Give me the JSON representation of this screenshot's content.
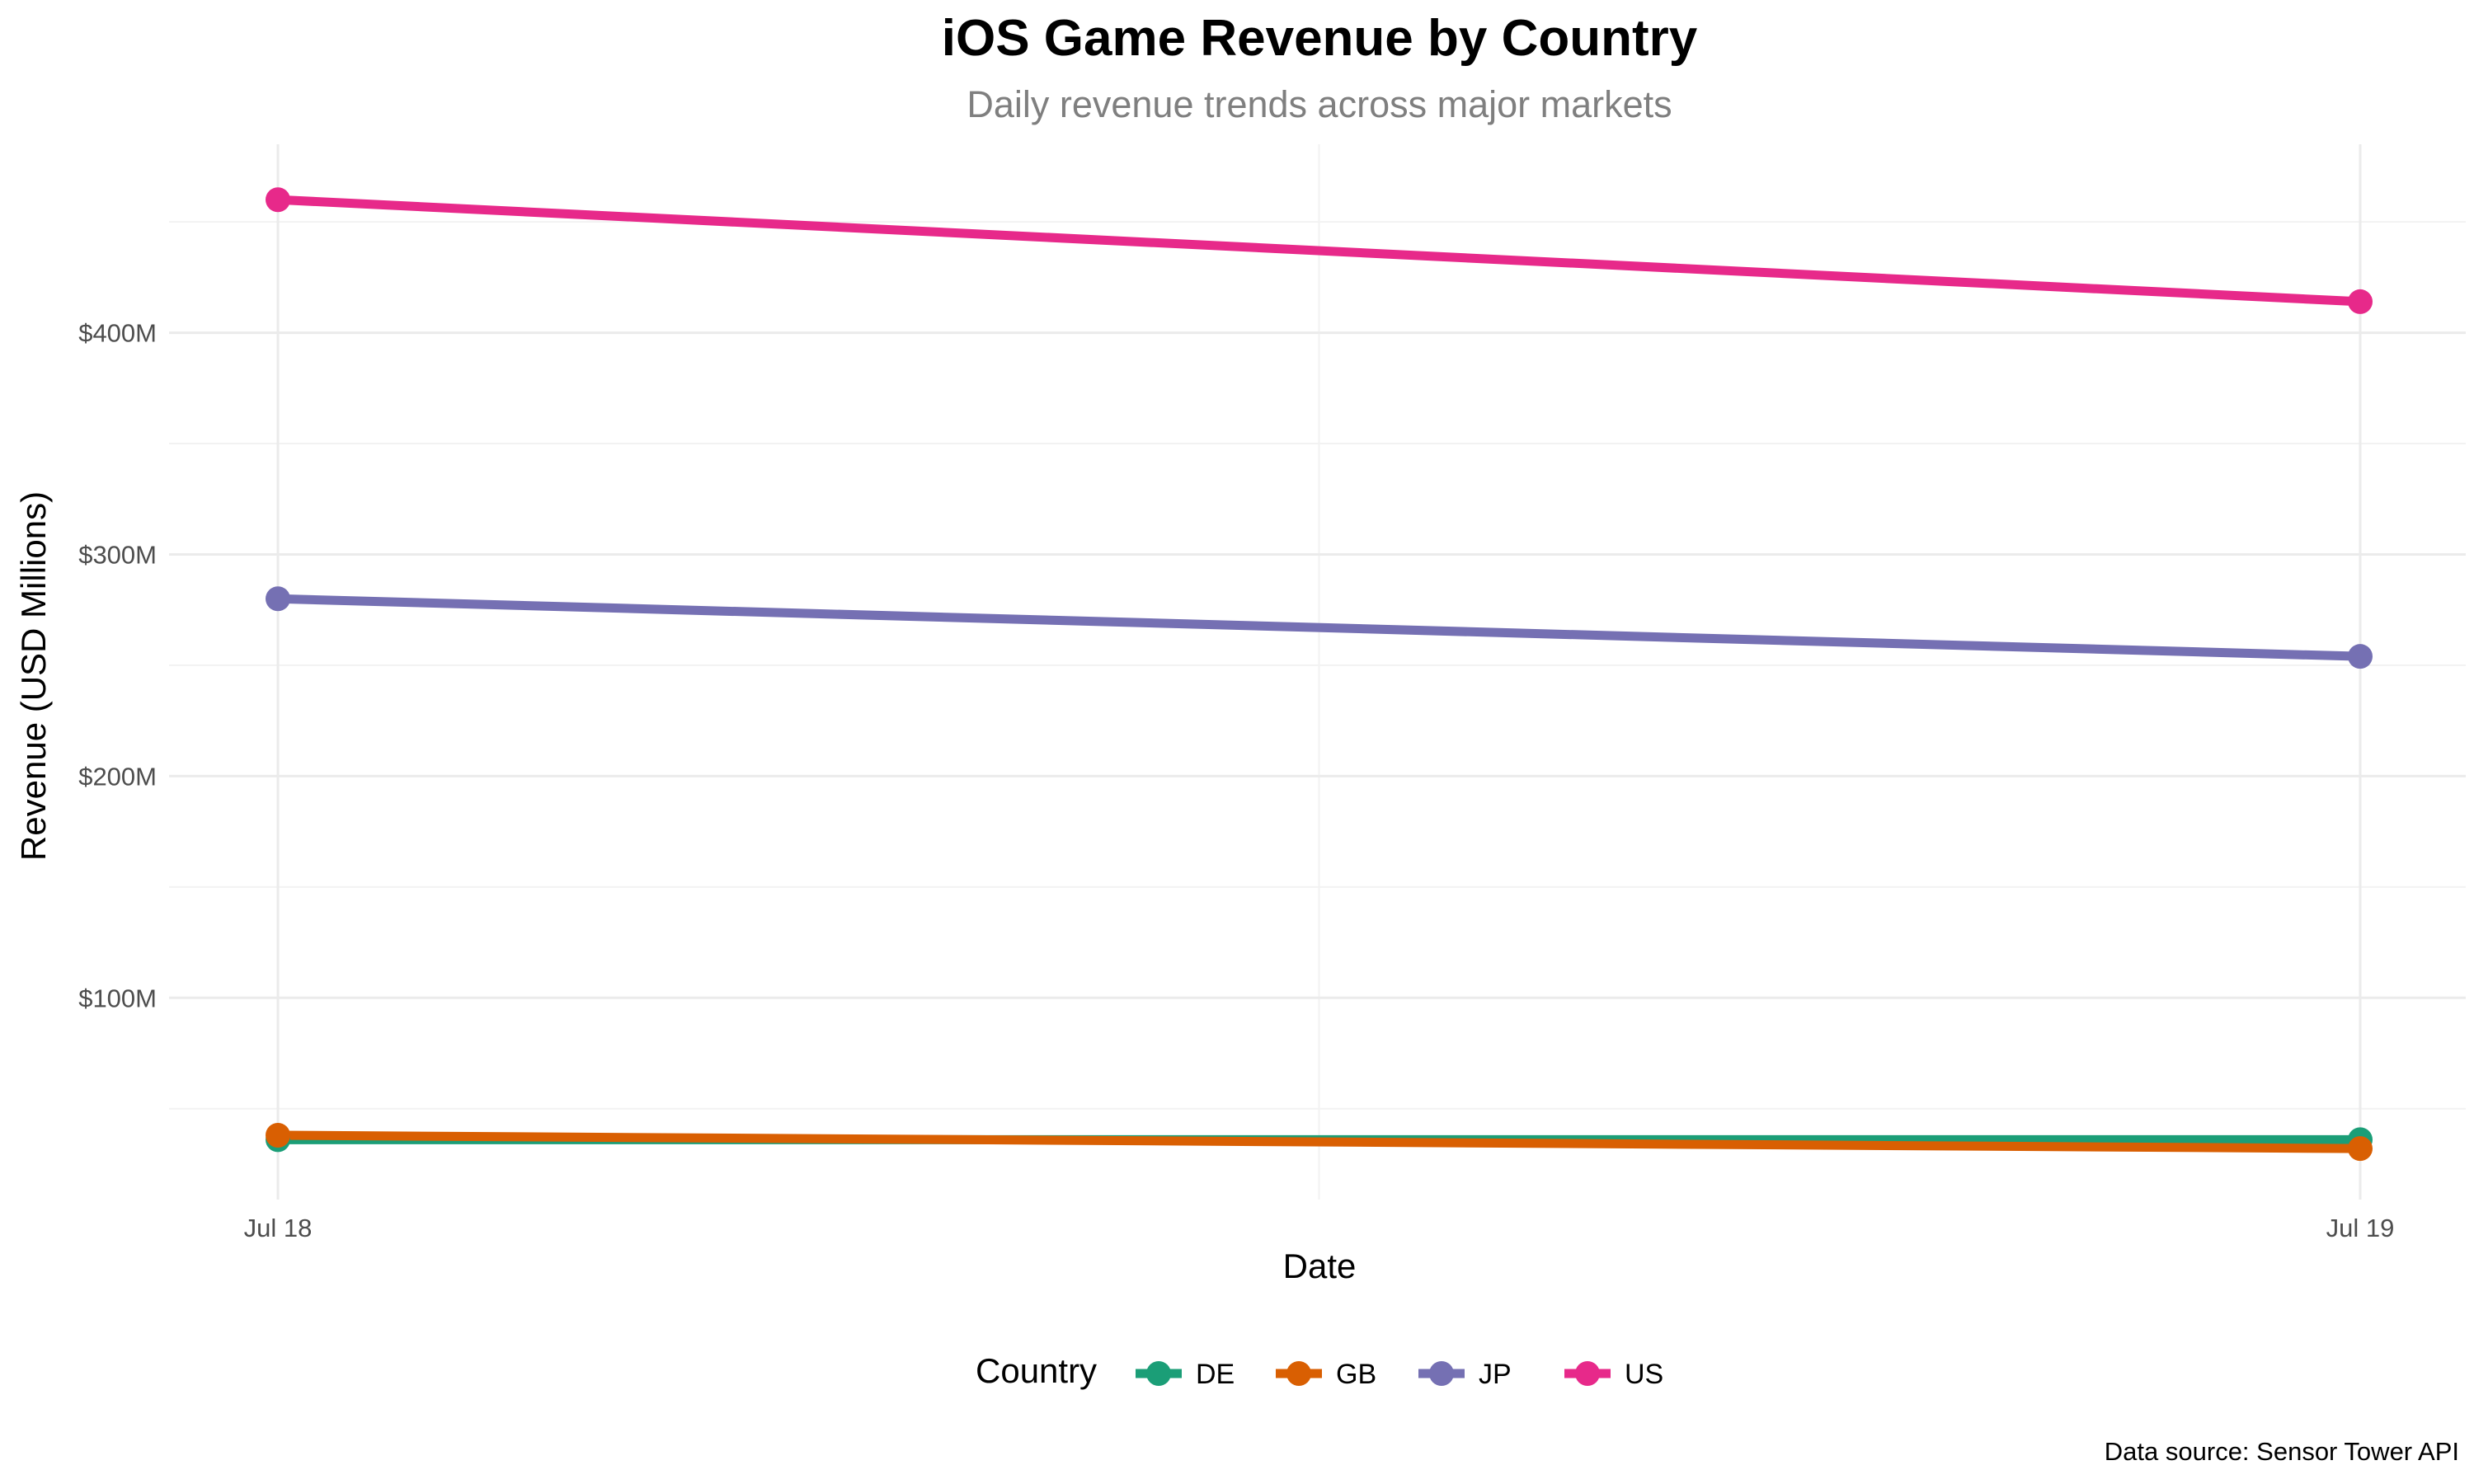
{
  "chart_data": {
    "type": "line",
    "title": "iOS Game Revenue by Country",
    "subtitle": "Daily revenue trends across major markets",
    "xlabel": "Date",
    "ylabel": "Revenue (USD Millions)",
    "caption": "Data source: Sensor Tower API",
    "x": [
      "Jul 18",
      "Jul 19"
    ],
    "ylim": [
      9,
      485
    ],
    "y_ticks": [
      100,
      200,
      300,
      400
    ],
    "y_tick_labels": [
      "$100M",
      "$200M",
      "$300M",
      "$400M"
    ],
    "grid": true,
    "legend_position": "bottom",
    "legend_title": "Country",
    "series": [
      {
        "name": "DE",
        "color": "#1b9e77",
        "values": [
          36,
          36
        ]
      },
      {
        "name": "GB",
        "color": "#d95f02",
        "values": [
          38,
          32
        ]
      },
      {
        "name": "JP",
        "color": "#7570b3",
        "values": [
          280,
          254
        ]
      },
      {
        "name": "US",
        "color": "#e7298a",
        "values": [
          460,
          414
        ]
      }
    ]
  }
}
